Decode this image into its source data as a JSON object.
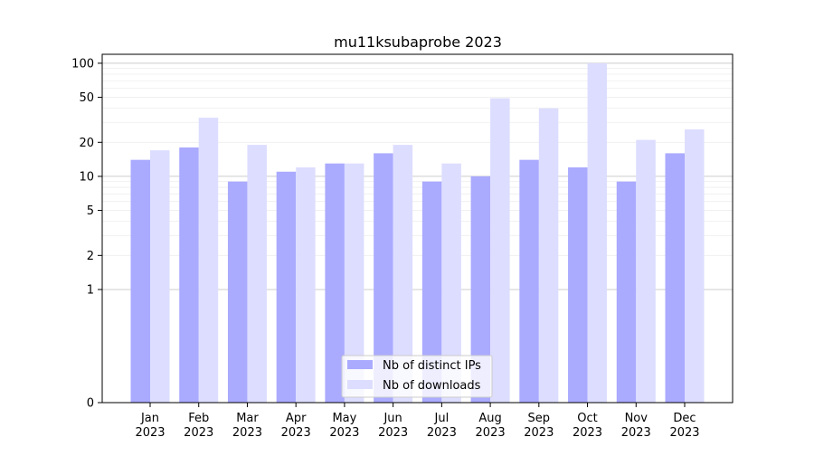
{
  "chart_data": {
    "type": "bar",
    "title": "mu11ksubaprobe 2023",
    "xlabel": "",
    "ylabel": "",
    "y_scale": "symlog",
    "ylim": [
      0,
      120
    ],
    "y_ticks": [
      0,
      1,
      2,
      5,
      10,
      20,
      50,
      100
    ],
    "grid": "horizontal",
    "legend_placement": "lower-center",
    "categories": [
      "Jan\n2023",
      "Feb\n2023",
      "Mar\n2023",
      "Apr\n2023",
      "May\n2023",
      "Jun\n2023",
      "Jul\n2023",
      "Aug\n2023",
      "Sep\n2023",
      "Oct\n2023",
      "Nov\n2023",
      "Dec\n2023"
    ],
    "series": [
      {
        "name": "Nb of distinct IPs",
        "color": "#aaaaff",
        "values": [
          14,
          18,
          9,
          11,
          13,
          16,
          9,
          10,
          14,
          12,
          9,
          16
        ]
      },
      {
        "name": "Nb of downloads",
        "color": "#ddddff",
        "values": [
          17,
          33,
          19,
          12,
          13,
          19,
          13,
          49,
          40,
          100,
          21,
          26
        ]
      }
    ]
  }
}
